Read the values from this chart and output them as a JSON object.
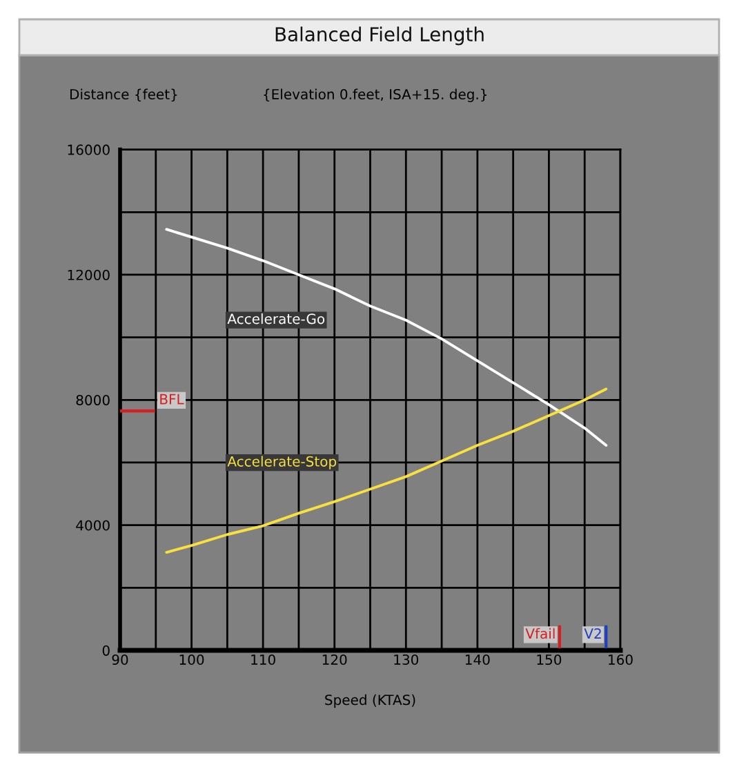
{
  "chart_data": {
    "type": "line",
    "title": "Balanced Field Length",
    "subtitle": "{Elevation 0.feet, ISA+15. deg.}",
    "xlabel": "Speed (KTAS)",
    "ylabel": "Distance {feet}",
    "xlim": [
      90,
      160
    ],
    "xticks": [
      90,
      {
        "value": 95,
        "label": null
      },
      100,
      {
        "value": 105,
        "label": null
      },
      110,
      {
        "value": 115,
        "label": null
      },
      120,
      {
        "value": 125,
        "label": null
      },
      130,
      {
        "value": 135,
        "label": null
      },
      140,
      {
        "value": 145,
        "label": null
      },
      150,
      {
        "value": 155,
        "label": null
      },
      160
    ],
    "ylim": [
      0,
      16000
    ],
    "yticks": [
      0,
      {
        "value": 2000,
        "label": null
      },
      4000,
      {
        "value": 6000,
        "label": null
      },
      8000,
      {
        "value": 10000,
        "label": null
      },
      12000,
      {
        "value": 14000,
        "label": null
      },
      16000
    ],
    "grid": true,
    "marker": "none",
    "line_style": "solid",
    "series": [
      {
        "name": "Accelerate-Go",
        "color": "#ffffff",
        "x": [
          96.5,
          105,
          110,
          115,
          120,
          125,
          130,
          135,
          140,
          145,
          150,
          155,
          158
        ],
        "values": [
          13450,
          12850,
          12450,
          12000,
          11550,
          11000,
          10550,
          9950,
          9250,
          8550,
          7850,
          7100,
          6550
        ]
      },
      {
        "name": "Accelerate-Stop",
        "color": "#f8e040",
        "x": [
          96.5,
          100,
          105,
          110,
          115,
          120,
          125,
          130,
          135,
          140,
          145,
          150,
          155,
          158
        ],
        "values": [
          3130,
          3350,
          3700,
          3980,
          4380,
          4750,
          5150,
          5550,
          6050,
          6550,
          7000,
          7500,
          8000,
          8350
        ]
      }
    ],
    "ref_lines": [
      {
        "axis": "y",
        "value": 7650,
        "label": "BFL",
        "color": "#d42020"
      },
      {
        "axis": "x",
        "value": 151.5,
        "label": "Vfail",
        "color": "#d42020"
      },
      {
        "axis": "x",
        "value": 158,
        "label": "V2",
        "color": "#2040c0"
      }
    ]
  }
}
